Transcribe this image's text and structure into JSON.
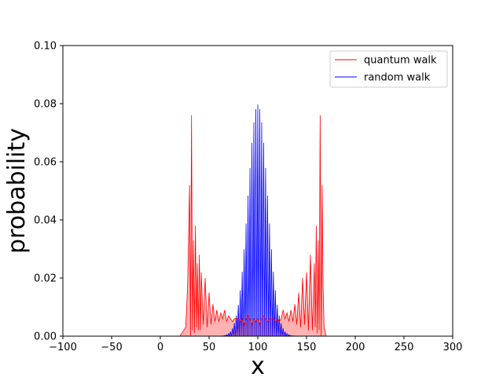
{
  "chart_data": {
    "type": "line",
    "title": "",
    "xlabel": "x",
    "ylabel": "probability",
    "xlim": [
      -100,
      300
    ],
    "ylim": [
      0,
      0.1
    ],
    "xticks": [
      "−100",
      "−50",
      "0",
      "50",
      "100",
      "150",
      "200",
      "250",
      "300"
    ],
    "xtick_values": [
      -100,
      -50,
      0,
      50,
      100,
      150,
      200,
      250,
      300
    ],
    "yticks": [
      "0.00",
      "0.02",
      "0.04",
      "0.06",
      "0.08",
      "0.10"
    ],
    "ytick_values": [
      0,
      0.02,
      0.04,
      0.06,
      0.08,
      0.1
    ],
    "grid": false,
    "legend_position": "top-right",
    "colors": {
      "quantum": "#ff0000",
      "random": "#0000ff"
    },
    "series": [
      {
        "name": "quantum walk",
        "color": "#ff0000",
        "x": [
          0,
          20,
          26,
          28,
          30,
          31,
          32,
          33,
          34,
          35,
          36,
          37,
          38,
          39,
          40,
          41,
          42,
          44,
          46,
          48,
          50,
          52,
          54,
          56,
          58,
          60,
          62,
          64,
          66,
          68,
          70,
          72,
          74,
          76,
          78,
          80,
          82,
          84,
          86,
          88,
          90,
          92,
          94,
          96,
          98,
          100,
          102,
          104,
          106,
          108,
          110,
          112,
          114,
          116,
          118,
          120,
          122,
          124,
          126,
          128,
          130,
          132,
          134,
          136,
          138,
          140,
          142,
          144,
          146,
          148,
          150,
          152,
          154,
          156,
          158,
          159,
          160,
          161,
          162,
          163,
          164,
          165,
          166,
          167,
          168,
          169,
          170,
          172,
          174,
          180,
          200
        ],
        "y": [
          0,
          0,
          0.003,
          0.017,
          0.052,
          0.0,
          0.076,
          0.002,
          0.033,
          0.001,
          0.038,
          0.003,
          0.025,
          0.002,
          0.028,
          0.002,
          0.022,
          0.004,
          0.02,
          0.003,
          0.015,
          0.004,
          0.011,
          0.005,
          0.009,
          0.005,
          0.008,
          0.006,
          0.009,
          0.005,
          0.007,
          0.006,
          0.005,
          0.006,
          0.006,
          0.006,
          0.005,
          0.006,
          0.004,
          0.006,
          0.007,
          0.006,
          0.004,
          0.006,
          0.005,
          0.006,
          0.004,
          0.006,
          0.007,
          0.006,
          0.005,
          0.006,
          0.006,
          0.006,
          0.005,
          0.006,
          0.005,
          0.006,
          0.009,
          0.006,
          0.008,
          0.005,
          0.009,
          0.005,
          0.011,
          0.004,
          0.015,
          0.003,
          0.02,
          0.004,
          0.022,
          0.002,
          0.028,
          0.002,
          0.025,
          0.003,
          0.038,
          0.001,
          0.033,
          0.002,
          0.076,
          0.0,
          0.052,
          0.017,
          0.003,
          0.002,
          0.0,
          0,
          0,
          0,
          0
        ]
      },
      {
        "name": "random walk",
        "color": "#0000ff",
        "mean": 100,
        "peak": 0.0797,
        "sigma": 10.0,
        "support": [
          0,
          200
        ]
      }
    ]
  }
}
